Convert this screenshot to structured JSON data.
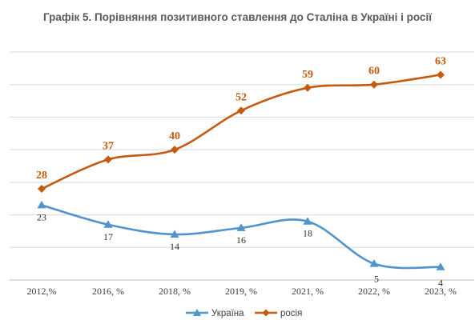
{
  "chart_data": {
    "type": "line",
    "title": "Графік 5. Порівняння позитивного ставлення до Сталіна в Україні і росії",
    "categories": [
      "2012,%",
      "2016, %",
      "2018, %",
      "2019, %",
      "2021, %",
      "2022, %",
      "2023, %"
    ],
    "series": [
      {
        "name": "Україна",
        "values": [
          23,
          17,
          14,
          16,
          18,
          5,
          4
        ],
        "color": "#4f94cd",
        "marker": "triangle"
      },
      {
        "name": "росія",
        "values": [
          28,
          37,
          40,
          52,
          59,
          60,
          63
        ],
        "color": "#c55a11",
        "marker": "diamond"
      }
    ],
    "ylim": [
      0,
      70
    ],
    "grid": true,
    "legend": "bottom",
    "smooth": true
  }
}
